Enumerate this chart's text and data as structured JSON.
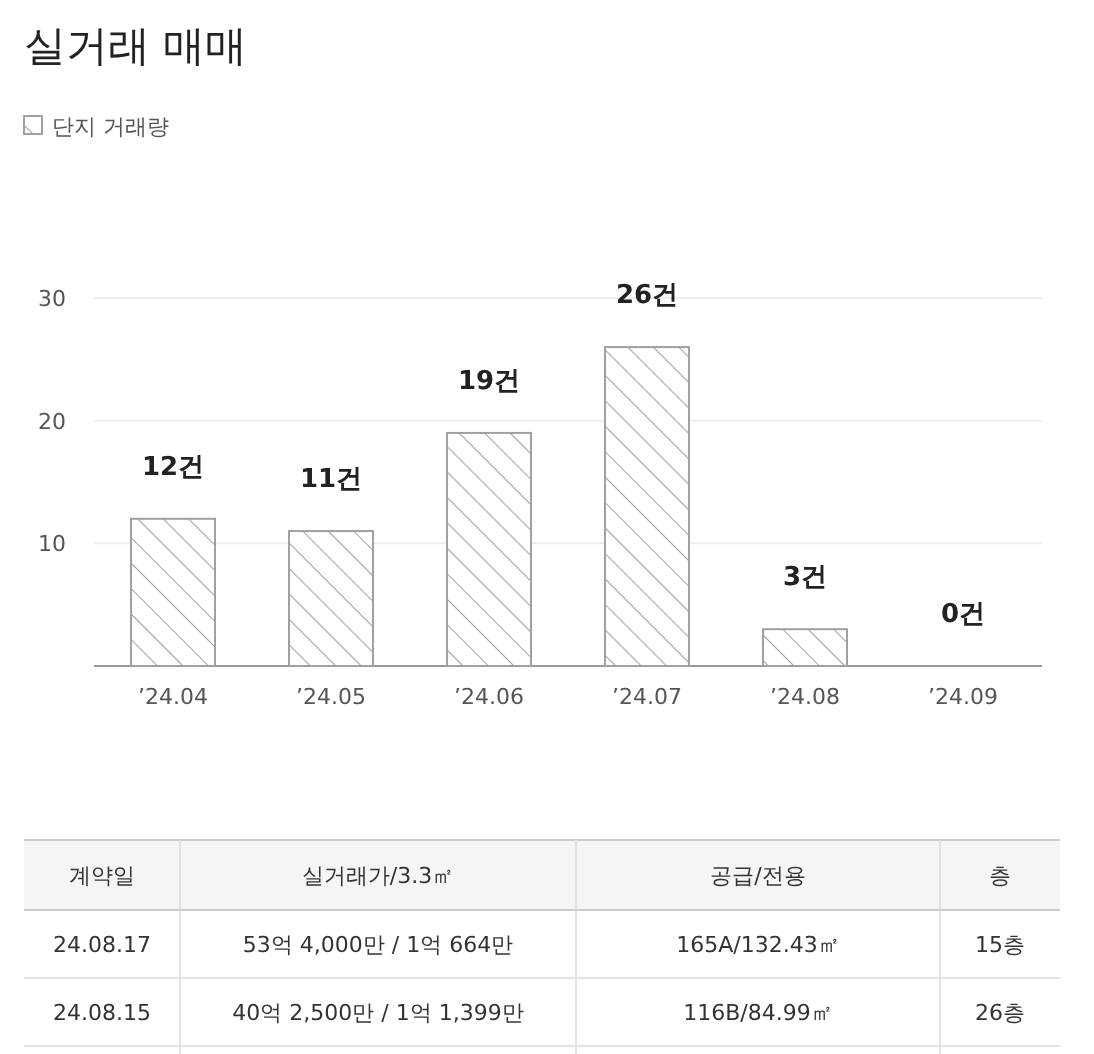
{
  "chart_data": [
    {
      "type": "bar",
      "title": "실거래 매매",
      "categories": [
        "’24.04",
        "’24.05",
        "’24.06",
        "’24.07",
        "’24.08",
        "’24.09"
      ],
      "series": [
        {
          "name": "단지 거래량",
          "color": "#a0a0a0",
          "values": [
            12,
            11,
            19,
            26,
            3,
            0
          ],
          "value_labels": [
            "12건",
            "11건",
            "19건",
            "26건",
            "3건",
            "0건"
          ]
        }
      ],
      "ylim": [
        0,
        30
      ],
      "yticks": [
        10,
        20,
        30
      ],
      "grid": "y",
      "legend": "top left"
    },
    {
      "type": "other",
      "categories": [
        "계약일",
        "실거래가/3.3㎡",
        "공급/전용",
        "층"
      ],
      "cell_labels": [
        [
          "24.08.17",
          "53억 4,000만 / 1억 664만",
          "165A/132.43㎡",
          "15층"
        ],
        [
          "24.08.15",
          "40억 2,500만 / 1억 1,399만",
          "116B/84.99㎡",
          "26층"
        ]
      ]
    }
  ]
}
